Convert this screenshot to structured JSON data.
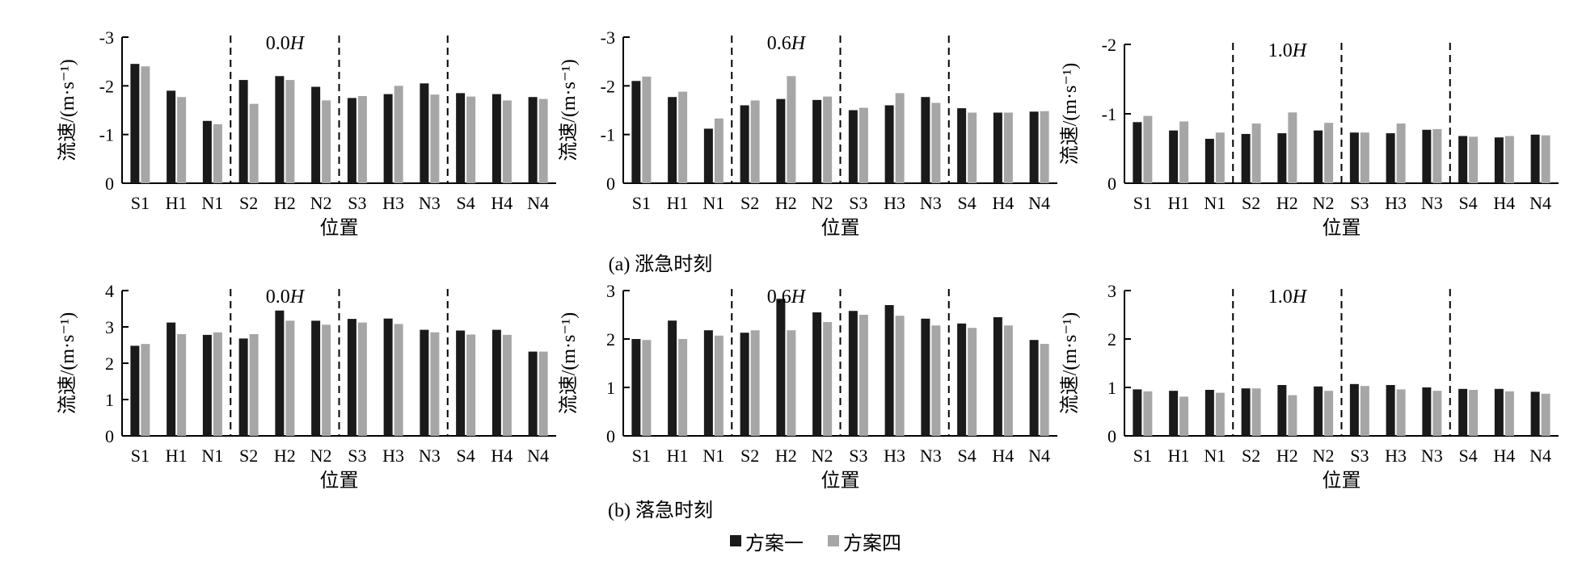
{
  "figure": {
    "caption_a": "(a) 涨急时刻",
    "caption_b": "(b) 落急时刻",
    "legend": [
      {
        "label": "方案一",
        "color": "#1a1a1a"
      },
      {
        "label": "方案四",
        "color": "#a6a6a6"
      }
    ]
  },
  "chart_data": [
    {
      "type": "bar",
      "panel": "a",
      "depth_label": "0.0",
      "depth_unit": "H",
      "categories": [
        "S1",
        "H1",
        "N1",
        "S2",
        "H2",
        "N2",
        "S3",
        "H3",
        "N3",
        "S4",
        "H4",
        "N4"
      ],
      "series": [
        {
          "name": "方案一",
          "values": [
            -2.45,
            -1.9,
            -1.28,
            -2.12,
            -2.2,
            -1.98,
            -1.75,
            -1.83,
            -2.05,
            -1.85,
            -1.83,
            -1.77
          ]
        },
        {
          "name": "方案四",
          "values": [
            -2.4,
            -1.77,
            -1.21,
            -1.63,
            -2.12,
            -1.7,
            -1.79,
            -2.0,
            -1.82,
            -1.78,
            -1.7,
            -1.73
          ]
        }
      ],
      "xlabel": "位置",
      "ylabel": "流速/(m·s⁻¹)",
      "ylim": [
        0,
        -3
      ],
      "yticks": [
        "-3",
        "-2",
        "-1",
        "0"
      ],
      "ytick_values": [
        -3,
        -2,
        -1,
        0
      ],
      "group_dividers": true,
      "grid": false
    },
    {
      "type": "bar",
      "panel": "a",
      "depth_label": "0.6",
      "depth_unit": "H",
      "categories": [
        "S1",
        "H1",
        "N1",
        "S2",
        "H2",
        "N2",
        "S3",
        "H3",
        "N3",
        "S4",
        "H4",
        "N4"
      ],
      "series": [
        {
          "name": "方案一",
          "values": [
            -2.1,
            -1.77,
            -1.12,
            -1.6,
            -1.73,
            -1.71,
            -1.5,
            -1.6,
            -1.77,
            -1.54,
            -1.45,
            -1.47
          ]
        },
        {
          "name": "方案四",
          "values": [
            -2.19,
            -1.88,
            -1.33,
            -1.7,
            -2.2,
            -1.78,
            -1.55,
            -1.85,
            -1.65,
            -1.45,
            -1.45,
            -1.48
          ]
        }
      ],
      "xlabel": "位置",
      "ylabel": "流速/(m·s⁻¹)",
      "ylim": [
        0,
        -3
      ],
      "yticks": [
        "-3",
        "-2",
        "-1",
        "0"
      ],
      "ytick_values": [
        -3,
        -2,
        -1,
        0
      ],
      "group_dividers": true,
      "grid": false
    },
    {
      "type": "bar",
      "panel": "a",
      "depth_label": "1.0",
      "depth_unit": "H",
      "categories": [
        "S1",
        "H1",
        "N1",
        "S2",
        "H2",
        "N2",
        "S3",
        "H3",
        "N3",
        "S4",
        "H4",
        "N4"
      ],
      "series": [
        {
          "name": "方案一",
          "values": [
            -0.88,
            -0.76,
            -0.64,
            -0.71,
            -0.72,
            -0.76,
            -0.73,
            -0.72,
            -0.77,
            -0.68,
            -0.66,
            -0.7
          ]
        },
        {
          "name": "方案四",
          "values": [
            -0.97,
            -0.89,
            -0.73,
            -0.86,
            -1.02,
            -0.87,
            -0.73,
            -0.86,
            -0.78,
            -0.67,
            -0.68,
            -0.69
          ]
        }
      ],
      "xlabel": "位置",
      "ylabel": "流速/(m·s⁻¹)",
      "ylim": [
        0,
        -2
      ],
      "yticks": [
        "-2",
        "-1",
        "0"
      ],
      "ytick_values": [
        -2,
        -1,
        0
      ],
      "group_dividers": true,
      "grid": false
    },
    {
      "type": "bar",
      "panel": "b",
      "depth_label": "0.0",
      "depth_unit": "H",
      "categories": [
        "S1",
        "H1",
        "N1",
        "S2",
        "H2",
        "N2",
        "S3",
        "H3",
        "N3",
        "S4",
        "H4",
        "N4"
      ],
      "series": [
        {
          "name": "方案一",
          "values": [
            2.48,
            3.12,
            2.78,
            2.68,
            3.45,
            3.17,
            3.22,
            3.23,
            2.92,
            2.9,
            2.92,
            2.32
          ]
        },
        {
          "name": "方案四",
          "values": [
            2.53,
            2.8,
            2.85,
            2.8,
            3.17,
            3.06,
            3.12,
            3.08,
            2.85,
            2.79,
            2.78,
            2.32
          ]
        }
      ],
      "xlabel": "位置",
      "ylabel": "流速/(m·s⁻¹)",
      "ylim": [
        0,
        4
      ],
      "yticks": [
        "4",
        "3",
        "2",
        "1",
        "0"
      ],
      "ytick_values": [
        4,
        3,
        2,
        1,
        0
      ],
      "group_dividers": true,
      "grid": false
    },
    {
      "type": "bar",
      "panel": "b",
      "depth_label": "0.6",
      "depth_unit": "H",
      "categories": [
        "S1",
        "H1",
        "N1",
        "S2",
        "H2",
        "N2",
        "S3",
        "H3",
        "N3",
        "S4",
        "H4",
        "N4"
      ],
      "series": [
        {
          "name": "方案一",
          "values": [
            2.0,
            2.38,
            2.18,
            2.13,
            2.83,
            2.55,
            2.58,
            2.7,
            2.42,
            2.32,
            2.45,
            1.98
          ]
        },
        {
          "name": "方案四",
          "values": [
            1.98,
            2.0,
            2.07,
            2.18,
            2.18,
            2.35,
            2.5,
            2.48,
            2.28,
            2.23,
            2.28,
            1.9
          ]
        }
      ],
      "xlabel": "位置",
      "ylabel": "流速/(m·s⁻¹)",
      "ylim": [
        0,
        3
      ],
      "yticks": [
        "3",
        "2",
        "1",
        "0"
      ],
      "ytick_values": [
        3,
        2,
        1,
        0
      ],
      "group_dividers": true,
      "grid": false
    },
    {
      "type": "bar",
      "panel": "b",
      "depth_label": "1.0",
      "depth_unit": "H",
      "categories": [
        "S1",
        "H1",
        "N1",
        "S2",
        "H2",
        "N2",
        "S3",
        "H3",
        "N3",
        "S4",
        "H4",
        "N4"
      ],
      "series": [
        {
          "name": "方案一",
          "values": [
            0.96,
            0.93,
            0.95,
            0.98,
            1.05,
            1.02,
            1.07,
            1.05,
            1.0,
            0.97,
            0.97,
            0.91
          ]
        },
        {
          "name": "方案四",
          "values": [
            0.92,
            0.81,
            0.89,
            0.98,
            0.84,
            0.93,
            1.03,
            0.96,
            0.93,
            0.95,
            0.92,
            0.87
          ]
        }
      ],
      "xlabel": "位置",
      "ylabel": "流速/(m·s⁻¹)",
      "ylim": [
        0,
        3
      ],
      "yticks": [
        "3",
        "2",
        "1",
        "0"
      ],
      "ytick_values": [
        3,
        2,
        1,
        0
      ],
      "group_dividers": true,
      "grid": false
    }
  ]
}
